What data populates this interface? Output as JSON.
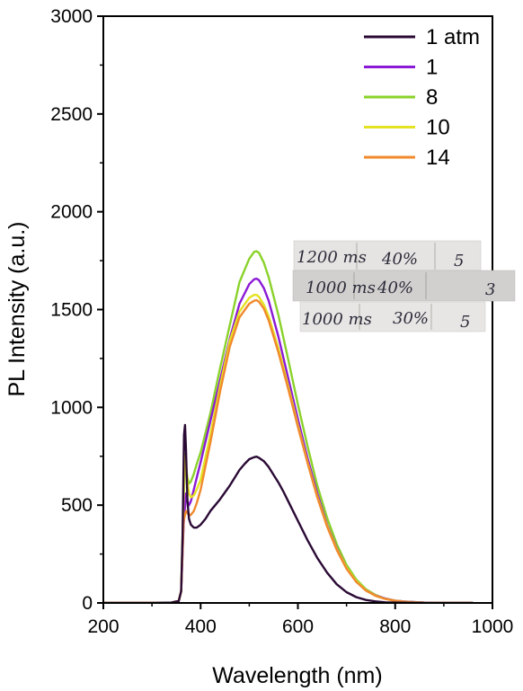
{
  "chart_data": {
    "type": "line",
    "xlabel": "Wavelength (nm)",
    "ylabel": "PL Intensity (a.u.)",
    "xlim": [
      200,
      1000
    ],
    "ylim": [
      0,
      3000
    ],
    "xticks": [
      200,
      400,
      600,
      800,
      1000
    ],
    "yticks": [
      0,
      500,
      1000,
      1500,
      2000,
      2500,
      3000
    ],
    "grid": false,
    "legend_position": "top-right",
    "series": [
      {
        "name": "1 atm",
        "color": "#2a0a35",
        "x": [
          200,
          250,
          300,
          340,
          355,
          360,
          363,
          366,
          368,
          370,
          373,
          376,
          380,
          386,
          392,
          400,
          410,
          420,
          430,
          440,
          450,
          460,
          470,
          480,
          490,
          500,
          510,
          515,
          520,
          530,
          540,
          550,
          560,
          570,
          580,
          590,
          600,
          620,
          640,
          660,
          680,
          700,
          720,
          740,
          760,
          780,
          800,
          850,
          900,
          960
        ],
        "y": [
          0,
          0,
          0,
          2,
          10,
          60,
          350,
          860,
          910,
          780,
          520,
          430,
          400,
          385,
          385,
          400,
          430,
          470,
          500,
          530,
          565,
          600,
          640,
          680,
          710,
          735,
          745,
          748,
          742,
          725,
          695,
          655,
          615,
          570,
          520,
          470,
          420,
          320,
          230,
          155,
          95,
          55,
          30,
          15,
          8,
          3,
          2,
          0,
          0,
          0
        ]
      },
      {
        "name": "1",
        "color": "#8b1ad6",
        "x": [
          200,
          250,
          300,
          340,
          355,
          360,
          365,
          370,
          373,
          376,
          380,
          386,
          392,
          400,
          420,
          440,
          460,
          480,
          500,
          510,
          515,
          520,
          530,
          540,
          560,
          580,
          600,
          620,
          640,
          660,
          680,
          700,
          720,
          740,
          760,
          780,
          800,
          820,
          840,
          860,
          880,
          900,
          960
        ],
        "y": [
          0,
          0,
          0,
          2,
          10,
          60,
          400,
          560,
          520,
          500,
          520,
          580,
          640,
          720,
          930,
          1140,
          1350,
          1530,
          1630,
          1655,
          1658,
          1650,
          1610,
          1545,
          1360,
          1150,
          940,
          740,
          560,
          400,
          280,
          180,
          110,
          65,
          38,
          22,
          12,
          7,
          4,
          2,
          1,
          0,
          0
        ]
      },
      {
        "name": "8",
        "color": "#8ad22a",
        "x": [
          200,
          250,
          300,
          340,
          355,
          360,
          365,
          368,
          370,
          373,
          376,
          380,
          386,
          392,
          400,
          420,
          440,
          460,
          480,
          500,
          510,
          515,
          520,
          530,
          540,
          560,
          580,
          600,
          620,
          640,
          660,
          680,
          700,
          720,
          740,
          760,
          780,
          800,
          820,
          840,
          860,
          880,
          900,
          960
        ],
        "y": [
          0,
          0,
          0,
          2,
          10,
          60,
          500,
          760,
          700,
          640,
          610,
          620,
          660,
          710,
          770,
          970,
          1200,
          1420,
          1640,
          1760,
          1795,
          1798,
          1790,
          1740,
          1665,
          1470,
          1245,
          1015,
          800,
          600,
          435,
          300,
          195,
          120,
          70,
          40,
          22,
          12,
          7,
          4,
          2,
          1,
          0,
          0
        ]
      },
      {
        "name": "10",
        "color": "#e4e222",
        "x": [
          200,
          250,
          300,
          340,
          355,
          360,
          365,
          368,
          370,
          373,
          376,
          380,
          386,
          392,
          400,
          420,
          440,
          460,
          480,
          500,
          510,
          515,
          520,
          530,
          540,
          560,
          580,
          600,
          620,
          640,
          660,
          680,
          700,
          720,
          740,
          760,
          780,
          800,
          820,
          840,
          860,
          880,
          900,
          960
        ],
        "y": [
          0,
          0,
          0,
          2,
          10,
          60,
          550,
          750,
          700,
          620,
          560,
          540,
          550,
          580,
          630,
          860,
          1110,
          1340,
          1490,
          1560,
          1575,
          1575,
          1565,
          1525,
          1465,
          1300,
          1110,
          910,
          720,
          545,
          395,
          275,
          180,
          112,
          65,
          37,
          20,
          11,
          6,
          3,
          1,
          0,
          0,
          0
        ]
      },
      {
        "name": "14",
        "color": "#f08a2c",
        "x": [
          200,
          250,
          300,
          340,
          355,
          360,
          365,
          370,
          373,
          376,
          380,
          386,
          392,
          400,
          420,
          440,
          460,
          480,
          500,
          510,
          515,
          520,
          530,
          540,
          560,
          580,
          600,
          620,
          640,
          660,
          680,
          700,
          720,
          740,
          760,
          780,
          800,
          820,
          840,
          860,
          880,
          900,
          960
        ],
        "y": [
          0,
          0,
          0,
          2,
          10,
          60,
          420,
          470,
          460,
          450,
          450,
          470,
          510,
          580,
          820,
          1080,
          1310,
          1460,
          1530,
          1545,
          1548,
          1540,
          1505,
          1445,
          1280,
          1095,
          900,
          715,
          540,
          390,
          270,
          175,
          108,
          63,
          36,
          20,
          11,
          6,
          3,
          1,
          0,
          0,
          0
        ]
      }
    ],
    "annotations": [
      {
        "type": "handwritten-note",
        "lines": [
          {
            "time": "1200 ms",
            "percent": "40%",
            "value": "5"
          },
          {
            "time": "1000 ms",
            "percent": "40%",
            "value": "3"
          },
          {
            "time": "1000 ms",
            "percent": "30%",
            "value": "5"
          }
        ]
      }
    ]
  }
}
